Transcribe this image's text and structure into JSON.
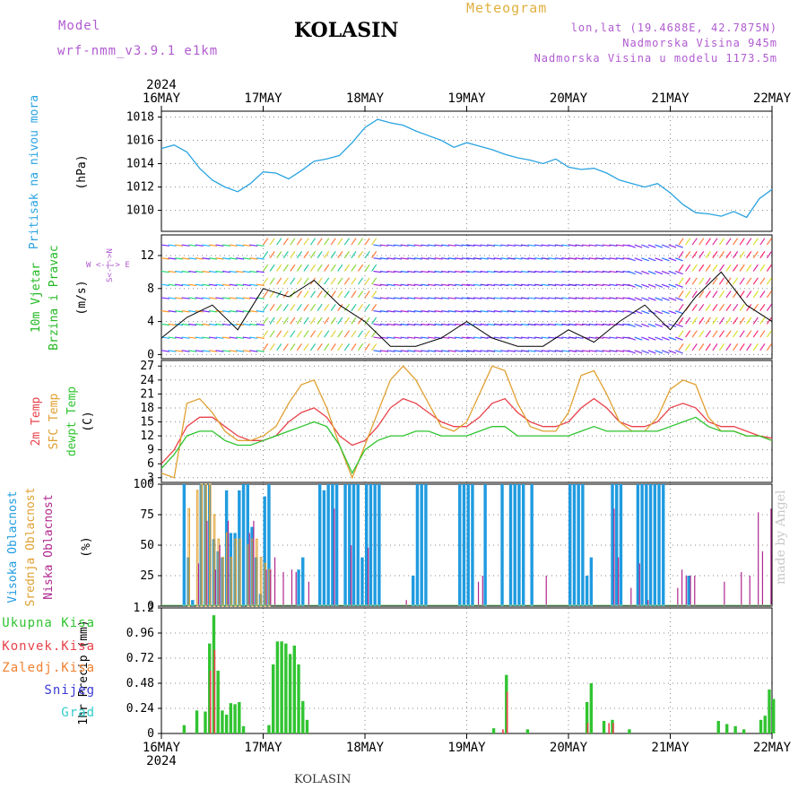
{
  "header": {
    "model_label": "Model",
    "model_value": "wrf-nmm_v3.9.1 e1km",
    "title": "KOLASIN",
    "product": "Meteogram",
    "lonlat": "lon,lat (19.4688E, 42.7875N)",
    "elevation": "Nadmorska Visina 945m",
    "model_elevation": "Nadmorska Visina u modelu 1173.5m"
  },
  "footer": {
    "station": "KOLASIN",
    "credit": "made by Angel"
  },
  "colors": {
    "pressure": "#29a3e0",
    "temp2m": "#e8424a",
    "sfc": "#e0a030",
    "dewpt": "#2ec42e",
    "high_cloud": "#1f9be0",
    "mid_cloud": "#e0a030",
    "low_cloud": "#b0268e",
    "precip_total": "#31c431",
    "precip_conv": "#e8424a",
    "grid": "#888888"
  },
  "chart_data": [
    {
      "type": "line",
      "panel": "pressure",
      "ylabel": "Pritisak na nivou mora",
      "unit": "(hPa)",
      "yticks": [
        1010,
        1012,
        1014,
        1016,
        1018
      ],
      "ylim": [
        1008.2,
        1018.5
      ],
      "x": [
        0,
        3,
        6,
        9,
        12,
        15,
        18,
        21,
        24,
        27,
        30,
        33,
        36,
        39,
        42,
        45,
        48,
        51,
        54,
        57,
        60,
        63,
        66,
        69,
        72,
        75,
        78,
        81,
        84,
        87,
        90,
        93,
        96,
        99,
        102,
        105,
        108,
        111,
        114,
        117,
        120,
        123,
        126,
        129,
        132,
        135,
        138,
        141,
        144
      ],
      "series": [
        {
          "name": "",
          "values": [
            1015.3,
            1015.6,
            1015.0,
            1013.6,
            1012.6,
            1012.0,
            1011.6,
            1012.3,
            1013.3,
            1013.2,
            1012.7,
            1013.4,
            1014.2,
            1014.4,
            1014.7,
            1015.8,
            1017.1,
            1017.8,
            1017.5,
            1017.3,
            1016.8,
            1016.4,
            1016.0,
            1015.4,
            1015.8,
            1015.5,
            1015.2,
            1014.8,
            1014.5,
            1014.3,
            1014.0,
            1014.4,
            1013.7,
            1013.5,
            1013.6,
            1013.2,
            1012.6,
            1012.3,
            1012.0,
            1012.3,
            1011.5,
            1010.5,
            1009.8,
            1009.7,
            1009.5,
            1009.9,
            1009.4,
            1011.0,
            1011.8
          ]
        }
      ]
    },
    {
      "type": "line",
      "panel": "wind",
      "ylabel": "10m Vjetar Brzina i Pravac",
      "unit": "(m/s)",
      "legend": "W <-|-> E, S<-|->N",
      "yticks": [
        0,
        4,
        8,
        12
      ],
      "ylim": [
        -0.5,
        14.5
      ],
      "x": [
        0,
        6,
        12,
        18,
        24,
        30,
        36,
        42,
        48,
        54,
        60,
        66,
        72,
        78,
        84,
        90,
        96,
        102,
        108,
        114,
        120,
        126,
        132,
        138,
        144
      ],
      "series": [
        {
          "name": "",
          "values": [
            2,
            4.5,
            6,
            3,
            8,
            7,
            9,
            6,
            4,
            1,
            1,
            2,
            4,
            2,
            1,
            1,
            3,
            1.5,
            4,
            6,
            3,
            7,
            10,
            6,
            4
          ]
        }
      ]
    },
    {
      "type": "line",
      "panel": "temperature",
      "ylabel": [
        "2m Temp",
        "SFC Temp",
        "dewpt Temp"
      ],
      "unit": "(C)",
      "yticks": [
        3,
        6,
        9,
        12,
        15,
        18,
        21,
        24,
        27
      ],
      "ylim": [
        2,
        28.2
      ],
      "x": [
        0,
        3,
        6,
        9,
        12,
        15,
        18,
        21,
        24,
        27,
        30,
        33,
        36,
        39,
        42,
        45,
        48,
        51,
        54,
        57,
        60,
        63,
        66,
        69,
        72,
        75,
        78,
        81,
        84,
        87,
        90,
        93,
        96,
        99,
        102,
        105,
        108,
        111,
        114,
        117,
        120,
        123,
        126,
        129,
        132,
        135,
        138,
        141,
        144
      ],
      "series": [
        {
          "name": "2m Temp",
          "values": [
            6,
            9,
            14,
            16,
            16,
            14,
            12,
            11,
            11,
            12,
            15,
            17,
            18,
            16,
            12,
            10,
            11,
            14,
            18,
            20,
            19,
            17,
            15,
            14,
            14,
            16,
            19,
            20,
            17,
            15,
            14,
            14,
            15,
            18,
            20,
            18,
            15,
            14,
            14,
            15,
            18,
            19,
            18,
            15,
            14,
            14,
            13,
            12,
            11.5
          ]
        },
        {
          "name": "SFC Temp",
          "values": [
            4,
            3,
            19,
            20,
            17,
            13,
            11,
            11,
            12,
            14,
            19,
            23,
            24,
            18,
            10,
            3,
            10,
            17,
            24,
            27,
            24,
            19,
            14,
            13,
            15,
            21,
            27,
            26,
            19,
            14,
            13,
            13,
            17,
            25,
            26,
            21,
            15,
            13,
            13,
            16,
            22,
            24,
            23,
            16,
            13,
            13,
            12,
            12,
            11
          ]
        },
        {
          "name": "dewpt Temp",
          "values": [
            5,
            8,
            12,
            13,
            13,
            11,
            10,
            10,
            11,
            12,
            13,
            14,
            15,
            14,
            10,
            4,
            9,
            11,
            12,
            12,
            13,
            13,
            12,
            12,
            12,
            13,
            14,
            14,
            12,
            12,
            12,
            12,
            12,
            13,
            14,
            13,
            13,
            13,
            13,
            13,
            14,
            15,
            16,
            14,
            13,
            13,
            12,
            12,
            11
          ]
        }
      ]
    },
    {
      "type": "bar",
      "panel": "cloud",
      "ylabel": [
        "Visoka Oblacnost",
        "Srednja Oblacnost",
        "Niska Oblacnost"
      ],
      "unit": "(%)",
      "yticks": [
        0,
        25,
        50,
        75,
        100
      ],
      "ylim": [
        0,
        100
      ],
      "series": [
        {
          "name": "Visoka Oblacnost",
          "x": [
            5,
            6,
            7,
            9,
            10,
            11,
            12,
            13,
            14,
            15,
            16,
            17,
            18,
            19,
            20,
            21,
            22,
            23,
            24,
            25,
            32,
            33,
            37,
            38,
            39,
            40,
            41,
            43,
            44,
            45,
            46,
            47,
            48,
            49,
            50,
            51,
            59,
            60,
            61,
            62,
            70,
            71,
            72,
            73,
            76,
            80,
            82,
            83,
            84,
            85,
            87,
            96,
            97,
            98,
            99,
            100,
            101,
            106,
            107,
            108,
            112,
            113,
            114,
            115,
            116,
            117,
            118,
            124
          ],
          "values": [
            100,
            40,
            5,
            100,
            100,
            100,
            55,
            45,
            40,
            95,
            60,
            60,
            95,
            100,
            100,
            65,
            40,
            10,
            90,
            100,
            30,
            40,
            100,
            95,
            100,
            100,
            100,
            100,
            100,
            100,
            100,
            40,
            100,
            100,
            100,
            100,
            25,
            100,
            100,
            100,
            100,
            100,
            100,
            100,
            100,
            100,
            100,
            100,
            100,
            100,
            100,
            100,
            100,
            100,
            100,
            25,
            40,
            100,
            100,
            100,
            100,
            100,
            100,
            100,
            100,
            100,
            100,
            25
          ]
        },
        {
          "name": "Srednja Oblacnost",
          "x": [
            6,
            8,
            9,
            10,
            11,
            12,
            13,
            14,
            15,
            16,
            17,
            18,
            20,
            21,
            22,
            23,
            24,
            25,
            26,
            27,
            28,
            29,
            30,
            31,
            32,
            33,
            34,
            35,
            36,
            37,
            38,
            39,
            40,
            41,
            42,
            43,
            44,
            45,
            46,
            47,
            48,
            49,
            50,
            51,
            52,
            53,
            54,
            55,
            56,
            57,
            58,
            59,
            60,
            61,
            62,
            63,
            64,
            65,
            66,
            67,
            68,
            69,
            70,
            71,
            72,
            73,
            74,
            75,
            76,
            77,
            78,
            79,
            80,
            81,
            82,
            83,
            84,
            85,
            86,
            87,
            88,
            89,
            90,
            91,
            92,
            93,
            94,
            95,
            96,
            97,
            98,
            99,
            100,
            101,
            102,
            103,
            104,
            105,
            106,
            107,
            108,
            109,
            110,
            111,
            112,
            113,
            114,
            115,
            116,
            117,
            118,
            119,
            120,
            121,
            122,
            123,
            124
          ],
          "values": [
            80,
            95,
            100,
            100,
            100,
            75,
            55,
            40,
            60,
            40,
            55,
            55,
            50,
            55,
            55,
            40,
            35,
            30,
            0,
            0,
            0,
            0,
            0,
            0,
            0,
            0,
            0,
            0,
            0,
            0,
            0,
            0,
            0,
            0,
            0,
            0,
            0,
            0,
            0,
            0,
            0,
            0,
            0,
            0,
            0,
            0,
            0,
            0,
            0,
            0,
            0,
            0,
            0,
            0,
            0,
            0,
            0,
            0,
            0,
            0,
            0,
            0,
            0,
            0,
            0,
            0,
            0,
            0,
            0,
            0,
            0,
            0,
            0,
            0,
            0,
            0,
            0,
            0,
            0,
            0,
            0,
            0,
            0,
            0,
            0,
            0,
            0,
            0,
            0,
            0,
            0,
            0,
            0,
            0,
            0,
            0,
            0,
            0,
            0,
            0,
            0,
            0,
            0,
            0,
            0,
            0,
            0,
            0,
            0,
            0,
            0,
            0,
            0,
            0,
            0,
            0,
            0
          ]
        },
        {
          "name": "Niska Oblacnost",
          "x": [
            8,
            10,
            12,
            13,
            15,
            20,
            21,
            24,
            25,
            26,
            28,
            30,
            31,
            34,
            40,
            44,
            48,
            57,
            59,
            74,
            75,
            90,
            106,
            107,
            110,
            112,
            114,
            121,
            122,
            123,
            124,
            125,
            132,
            136,
            138,
            140,
            141,
            143
          ],
          "values": [
            35,
            70,
            30,
            50,
            70,
            60,
            70,
            30,
            30,
            40,
            28,
            30,
            28,
            20,
            80,
            50,
            48,
            5,
            0,
            20,
            25,
            25,
            80,
            40,
            15,
            35,
            5,
            15,
            30,
            25,
            25,
            25,
            20,
            28,
            25,
            77,
            45,
            80
          ]
        }
      ]
    },
    {
      "type": "bar",
      "panel": "precipitation",
      "ylabel": "1hr Precip",
      "unit": "(mm)",
      "legend": [
        "Ukupna Kisa",
        "Konvek.Kisa",
        "Zaledj.Kisa",
        "Snijeg",
        "Grad"
      ],
      "yticks": [
        0,
        0.24,
        0.48,
        0.72,
        0.96,
        1.2
      ],
      "ylim": [
        0,
        1.2
      ],
      "x": [
        0,
        24,
        48,
        72,
        96,
        120,
        144
      ],
      "categories": [
        "16MAY",
        "17MAY",
        "18MAY",
        "19MAY",
        "20MAY",
        "21MAY",
        "22MAY"
      ],
      "series": [
        {
          "name": "Ukupna Kisa",
          "bars": [
            [
              5,
              0.08
            ],
            [
              8,
              0.22
            ],
            [
              10,
              0.21
            ],
            [
              11,
              0.86
            ],
            [
              12,
              1.13
            ],
            [
              13,
              0.6
            ],
            [
              14,
              0.22
            ],
            [
              15,
              0.18
            ],
            [
              16,
              0.29
            ],
            [
              17,
              0.28
            ],
            [
              18,
              0.3
            ],
            [
              19,
              0.07
            ],
            [
              25,
              0.08
            ],
            [
              26,
              0.66
            ],
            [
              27,
              0.88
            ],
            [
              28,
              0.88
            ],
            [
              29,
              0.86
            ],
            [
              30,
              0.76
            ],
            [
              31,
              0.84
            ],
            [
              32,
              0.66
            ],
            [
              33,
              0.31
            ],
            [
              34,
              0.13
            ],
            [
              78,
              0.05
            ],
            [
              81,
              0.56
            ],
            [
              86,
              0.04
            ],
            [
              100,
              0.3
            ],
            [
              101,
              0.48
            ],
            [
              104,
              0.12
            ],
            [
              106,
              0.13
            ],
            [
              110,
              0.04
            ],
            [
              131,
              0.12
            ],
            [
              133,
              0.09
            ],
            [
              135,
              0.07
            ],
            [
              137,
              0.04
            ],
            [
              141,
              0.13
            ],
            [
              142,
              0.17
            ],
            [
              143,
              0.42
            ],
            [
              144,
              0.33
            ]
          ]
        },
        {
          "name": "Konvek.Kisa",
          "bars": [
            [
              11,
              0.6
            ],
            [
              12,
              0.8
            ],
            [
              80,
              0.04
            ],
            [
              81,
              0.4
            ],
            [
              100,
              0.1
            ],
            [
              105,
              0.1
            ],
            [
              106,
              0.1
            ]
          ]
        }
      ]
    }
  ],
  "axis": {
    "year": "2024",
    "dates": [
      "16MAY",
      "17MAY",
      "18MAY",
      "19MAY",
      "20MAY",
      "21MAY",
      "22MAY"
    ]
  }
}
